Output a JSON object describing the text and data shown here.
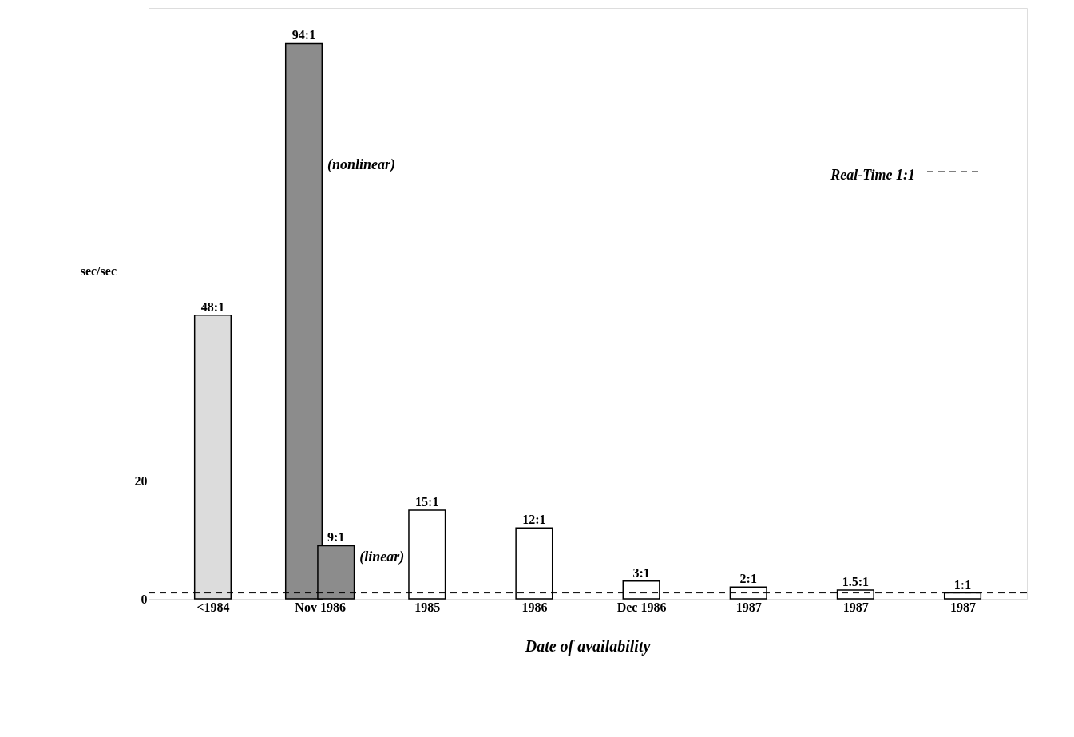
{
  "chart_data": {
    "type": "bar",
    "ylabel": "sec/sec",
    "xlabel": "Date of availability",
    "categories": [
      "<1984",
      "Nov 1986",
      "1985",
      "1986",
      "Dec 1986",
      "1987",
      "1987",
      "1987"
    ],
    "series": [
      {
        "color": "#dcdcdc",
        "values": [
          48,
          null,
          null,
          null,
          null,
          null,
          null,
          null
        ],
        "value_labels": [
          "48:1",
          null,
          null,
          null,
          null,
          null,
          null,
          null
        ]
      },
      {
        "color": "#8c8c8c",
        "values": [
          null,
          94,
          null,
          null,
          null,
          null,
          null,
          null
        ],
        "value_labels": [
          null,
          "94:1",
          null,
          null,
          null,
          null,
          null,
          null
        ]
      },
      {
        "color": "#8c8c8c",
        "values": [
          null,
          9,
          null,
          null,
          null,
          null,
          null,
          null
        ],
        "value_labels": [
          null,
          "9:1",
          null,
          null,
          null,
          null,
          null,
          null
        ]
      },
      {
        "color": "#ffffff",
        "values": [
          null,
          null,
          15,
          12,
          3,
          2,
          1.5,
          1
        ],
        "value_labels": [
          null,
          null,
          "15:1",
          "12:1",
          "3:1",
          "2:1",
          "1.5:1",
          "1:1"
        ]
      }
    ],
    "ylim": [
      0,
      100
    ],
    "yticks": [
      0,
      20
    ],
    "ref_lines": [
      {
        "axis": "y",
        "value": 1,
        "label": "Real-Time 1:1",
        "line_style": "dashed"
      }
    ],
    "annotations": [
      "(nonlinear)",
      "(linear)"
    ],
    "grid": false
  }
}
